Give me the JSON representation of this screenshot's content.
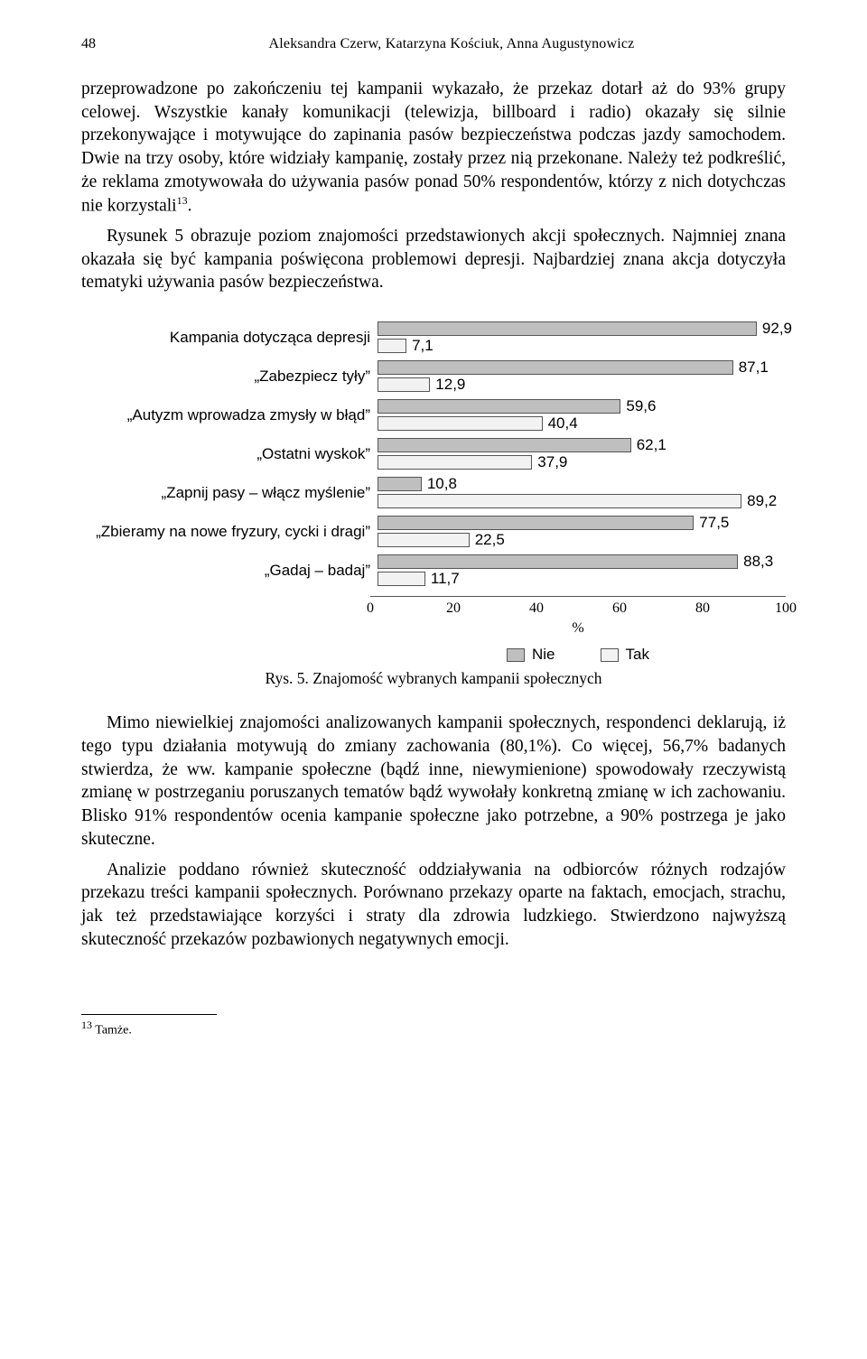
{
  "page_number": "48",
  "authors": "Aleksandra Czerw, Katarzyna Kościuk, Anna Augustynowicz",
  "paragraphs": {
    "p1": "przeprowadzone po zakończeniu tej kampanii wykazało, że przekaz dotarł aż do 93% grupy celowej. Wszystkie kanały komunikacji (telewizja, billboard i radio) okazały się silnie przekonywające i motywujące do zapinania pasów bezpieczeństwa podczas jazdy samochodem. Dwie na trzy osoby, które widziały kampanię, zostały przez nią przekonane. Należy też podkreślić, że reklama zmotywowała do używania pasów ponad 50% respondentów, którzy z nich dotychczas nie korzystali",
    "p1_sup": "13",
    "p1_tail": ".",
    "p2": "Rysunek 5 obrazuje poziom znajomości przedstawionych akcji społecznych. Najmniej znana okazała się być kampania poświęcona problemowi depresji. Najbardziej znana akcja dotyczyła tematyki używania pasów bezpieczeństwa.",
    "p3": "Mimo niewielkiej znajomości analizowanych kampanii społecznych, respondenci deklarują, iż tego typu działania motywują do zmiany zachowania (80,1%). Co więcej, 56,7% badanych stwierdza, że ww. kampanie społeczne (bądź inne, niewymienione) spowodowały rzeczywistą zmianę w postrzeganiu poruszanych tematów bądź wywołały konkretną zmianę w ich zachowaniu. Blisko 91% respondentów ocenia kampanie społeczne jako potrzebne, a 90% postrzega je jako skuteczne.",
    "p4": "Analizie poddano również skuteczność oddziaływania na odbiorców różnych rodzajów przekazu treści kampanii społecznych. Porównano przekazy oparte na faktach, emocjach, strachu, jak też przedstawiające korzyści i straty dla zdrowia ludzkiego. Stwierdzono najwyższą skuteczność przekazów pozbawionych negatywnych emocji."
  },
  "chart": {
    "type": "grouped-horizontal-bar",
    "x_max": 100,
    "ticks": [
      0,
      20,
      40,
      60,
      80,
      100
    ],
    "x_axis_label": "%",
    "legend": {
      "nie": "Nie",
      "tak": "Tak"
    },
    "colors": {
      "nie": "#bfbfbf",
      "tak": "#f2f2f2",
      "border": "#555555",
      "background": "#ffffff"
    },
    "rows": [
      {
        "label": "Kampania dotycząca depresji",
        "nie": 92.9,
        "tak": 7.1,
        "nie_s": "92,9",
        "tak_s": "7,1"
      },
      {
        "label": "„Zabezpiecz tyły”",
        "nie": 87.1,
        "tak": 12.9,
        "nie_s": "87,1",
        "tak_s": "12,9"
      },
      {
        "label": "„Autyzm wprowadza zmysły w błąd”",
        "nie": 59.6,
        "tak": 40.4,
        "nie_s": "59,6",
        "tak_s": "40,4"
      },
      {
        "label": "„Ostatni wyskok”",
        "nie": 62.1,
        "tak": 37.9,
        "nie_s": "62,1",
        "tak_s": "37,9"
      },
      {
        "label": "„Zapnij pasy – włącz myślenie”",
        "nie": 10.8,
        "tak": 89.2,
        "nie_s": "10,8",
        "tak_s": "89,2"
      },
      {
        "label": "„Zbieramy na nowe fryzury, cycki i dragi”",
        "nie": 77.5,
        "tak": 22.5,
        "nie_s": "77,5",
        "tak_s": "22,5"
      },
      {
        "label": "„Gadaj – badaj”",
        "nie": 88.3,
        "tak": 11.7,
        "nie_s": "88,3",
        "tak_s": "11,7"
      }
    ],
    "caption": "Rys. 5. Znajomość wybranych kampanii społecznych"
  },
  "footnote": {
    "num": "13",
    "text": "Tamże."
  }
}
